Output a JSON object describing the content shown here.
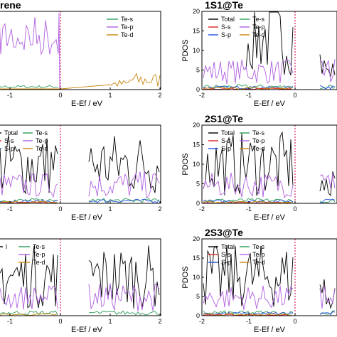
{
  "chart_data": [
    {
      "type": "line",
      "title": "rene",
      "xlabel": "E-Ef / eV",
      "ylabel": "",
      "xlim": [
        -1.4,
        2.0
      ],
      "ylim": [
        0,
        20
      ],
      "xticks": [
        "-1",
        "0",
        "1",
        "2"
      ],
      "yticks": [],
      "fermi_level": 0,
      "legend_position": "top-right",
      "series": [
        {
          "name": "Te-s",
          "color": "#2e9e5a",
          "values": []
        },
        {
          "name": "Te-p",
          "color": "#b060e0",
          "values": []
        },
        {
          "name": "Te-d",
          "color": "#c8860a",
          "values": []
        }
      ]
    },
    {
      "type": "line",
      "title": "1S1@Te",
      "xlabel": "E-Ef / eV",
      "ylabel": "PDOS",
      "xlim": [
        -2,
        0.9
      ],
      "ylim": [
        0,
        20
      ],
      "xticks": [
        "-2",
        "-1",
        "0"
      ],
      "yticks": [
        "0",
        "5",
        "10",
        "15",
        "20"
      ],
      "fermi_level": 0,
      "legend_position": "top-left",
      "series": [
        {
          "name": "Total",
          "color": "#000000",
          "values": []
        },
        {
          "name": "Te-s",
          "color": "#2e9e5a",
          "values": []
        },
        {
          "name": "S-s",
          "color": "#e02020",
          "values": []
        },
        {
          "name": "Te-p",
          "color": "#b060e0",
          "values": []
        },
        {
          "name": "S-p",
          "color": "#2050e0",
          "values": []
        },
        {
          "name": "Te-d",
          "color": "#c8860a",
          "values": []
        }
      ]
    },
    {
      "type": "line",
      "title": "",
      "xlabel": "E-Ef / eV",
      "ylabel": "",
      "xlim": [
        -1.4,
        2.0
      ],
      "ylim": [
        0,
        20
      ],
      "xticks": [
        "-1",
        "0",
        "1",
        "2"
      ],
      "yticks": [],
      "fermi_level": 0,
      "legend_position": "top-left",
      "series": [
        {
          "name": "Total",
          "color": "#000000",
          "values": []
        },
        {
          "name": "Te-s",
          "color": "#2e9e5a",
          "values": []
        },
        {
          "name": "S-s",
          "color": "#e02020",
          "values": []
        },
        {
          "name": "Te-p",
          "color": "#b060e0",
          "values": []
        },
        {
          "name": "S-p",
          "color": "#2050e0",
          "values": []
        },
        {
          "name": "Te-d",
          "color": "#c8860a",
          "values": []
        }
      ]
    },
    {
      "type": "line",
      "title": "2S1@Te",
      "xlabel": "E-Ef / eV",
      "ylabel": "PDOS",
      "xlim": [
        -2,
        0.9
      ],
      "ylim": [
        0,
        20
      ],
      "xticks": [
        "-2",
        "-1",
        "0"
      ],
      "yticks": [
        "0",
        "5",
        "10",
        "15",
        "20"
      ],
      "fermi_level": 0,
      "legend_position": "top-left",
      "series": [
        {
          "name": "Total",
          "color": "#000000",
          "values": []
        },
        {
          "name": "Te-s",
          "color": "#2e9e5a",
          "values": []
        },
        {
          "name": "S-s",
          "color": "#e02020",
          "values": []
        },
        {
          "name": "Te-p",
          "color": "#b060e0",
          "values": []
        },
        {
          "name": "S-p",
          "color": "#2050e0",
          "values": []
        },
        {
          "name": "Te-d",
          "color": "#c8860a",
          "values": []
        }
      ]
    },
    {
      "type": "line",
      "title": "",
      "xlabel": "E-Ef / eV",
      "ylabel": "",
      "xlim": [
        -1.4,
        2.0
      ],
      "ylim": [
        0,
        20
      ],
      "xticks": [
        "-1",
        "0",
        "1",
        "2"
      ],
      "yticks": [],
      "fermi_level": 0,
      "legend_position": "top-left",
      "series": [
        {
          "name": "l",
          "color": "#000000",
          "values": []
        },
        {
          "name": "Te-s",
          "color": "#2e9e5a",
          "values": []
        },
        {
          "name": "Te-p",
          "color": "#b060e0",
          "values": []
        },
        {
          "name": "Te-d",
          "color": "#c8860a",
          "values": []
        }
      ]
    },
    {
      "type": "line",
      "title": "2S3@Te",
      "xlabel": "E-Ef / eV",
      "ylabel": "PDOS",
      "xlim": [
        -2,
        0.9
      ],
      "ylim": [
        0,
        20
      ],
      "xticks": [
        "-2",
        "-1",
        "0"
      ],
      "yticks": [
        "0",
        "5",
        "10",
        "15",
        "20"
      ],
      "fermi_level": 0,
      "legend_position": "top-left",
      "series": [
        {
          "name": "Total",
          "color": "#000000",
          "values": []
        },
        {
          "name": "Te-s",
          "color": "#2e9e5a",
          "values": []
        },
        {
          "name": "S-s",
          "color": "#e02020",
          "values": []
        },
        {
          "name": "Te-p",
          "color": "#b060e0",
          "values": []
        },
        {
          "name": "S-p",
          "color": "#2050e0",
          "values": []
        },
        {
          "name": "Te-d",
          "color": "#c8860a",
          "values": []
        }
      ]
    }
  ]
}
